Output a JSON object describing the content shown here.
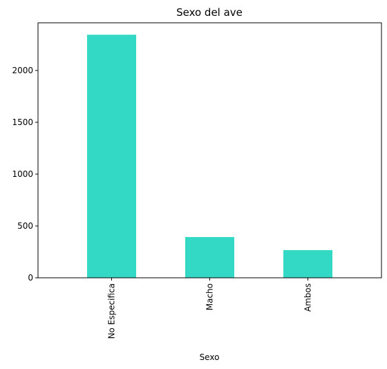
{
  "chart_data": {
    "type": "bar",
    "title": "Sexo del ave",
    "xlabel": "Sexo",
    "ylabel": "",
    "categories": [
      "No Especifica",
      "Macho",
      "Ambos"
    ],
    "values": [
      2345,
      393,
      267
    ],
    "ylim": [
      0,
      2460
    ],
    "yticks": [
      0,
      500,
      1000,
      1500,
      2000
    ],
    "bar_color": "#34d9c6",
    "grid": false,
    "legend": "none"
  }
}
